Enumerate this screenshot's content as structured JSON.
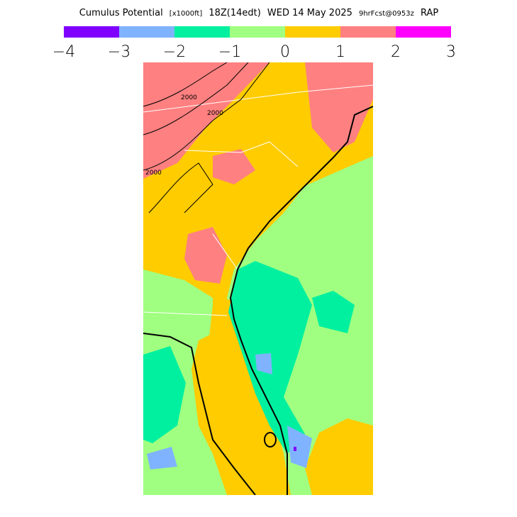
{
  "header": {
    "title": "Cumulus Potential",
    "units": "[x1000ft]",
    "valid": "18Z(14edt)",
    "date": "WED 14 May 2025",
    "forecast": "9hrFcst@0953z",
    "model": "RAP"
  },
  "legend": {
    "colors": [
      "#7f00ff",
      "#80b3ff",
      "#00f0a0",
      "#a0ff80",
      "#ffcc00",
      "#ff8080",
      "#ff00ff"
    ],
    "labels": [
      "−4",
      "−3",
      "−2",
      "−1",
      "0",
      "1",
      "2",
      "3"
    ]
  },
  "contour_labels": [
    "2000",
    "2000",
    "2000"
  ]
}
